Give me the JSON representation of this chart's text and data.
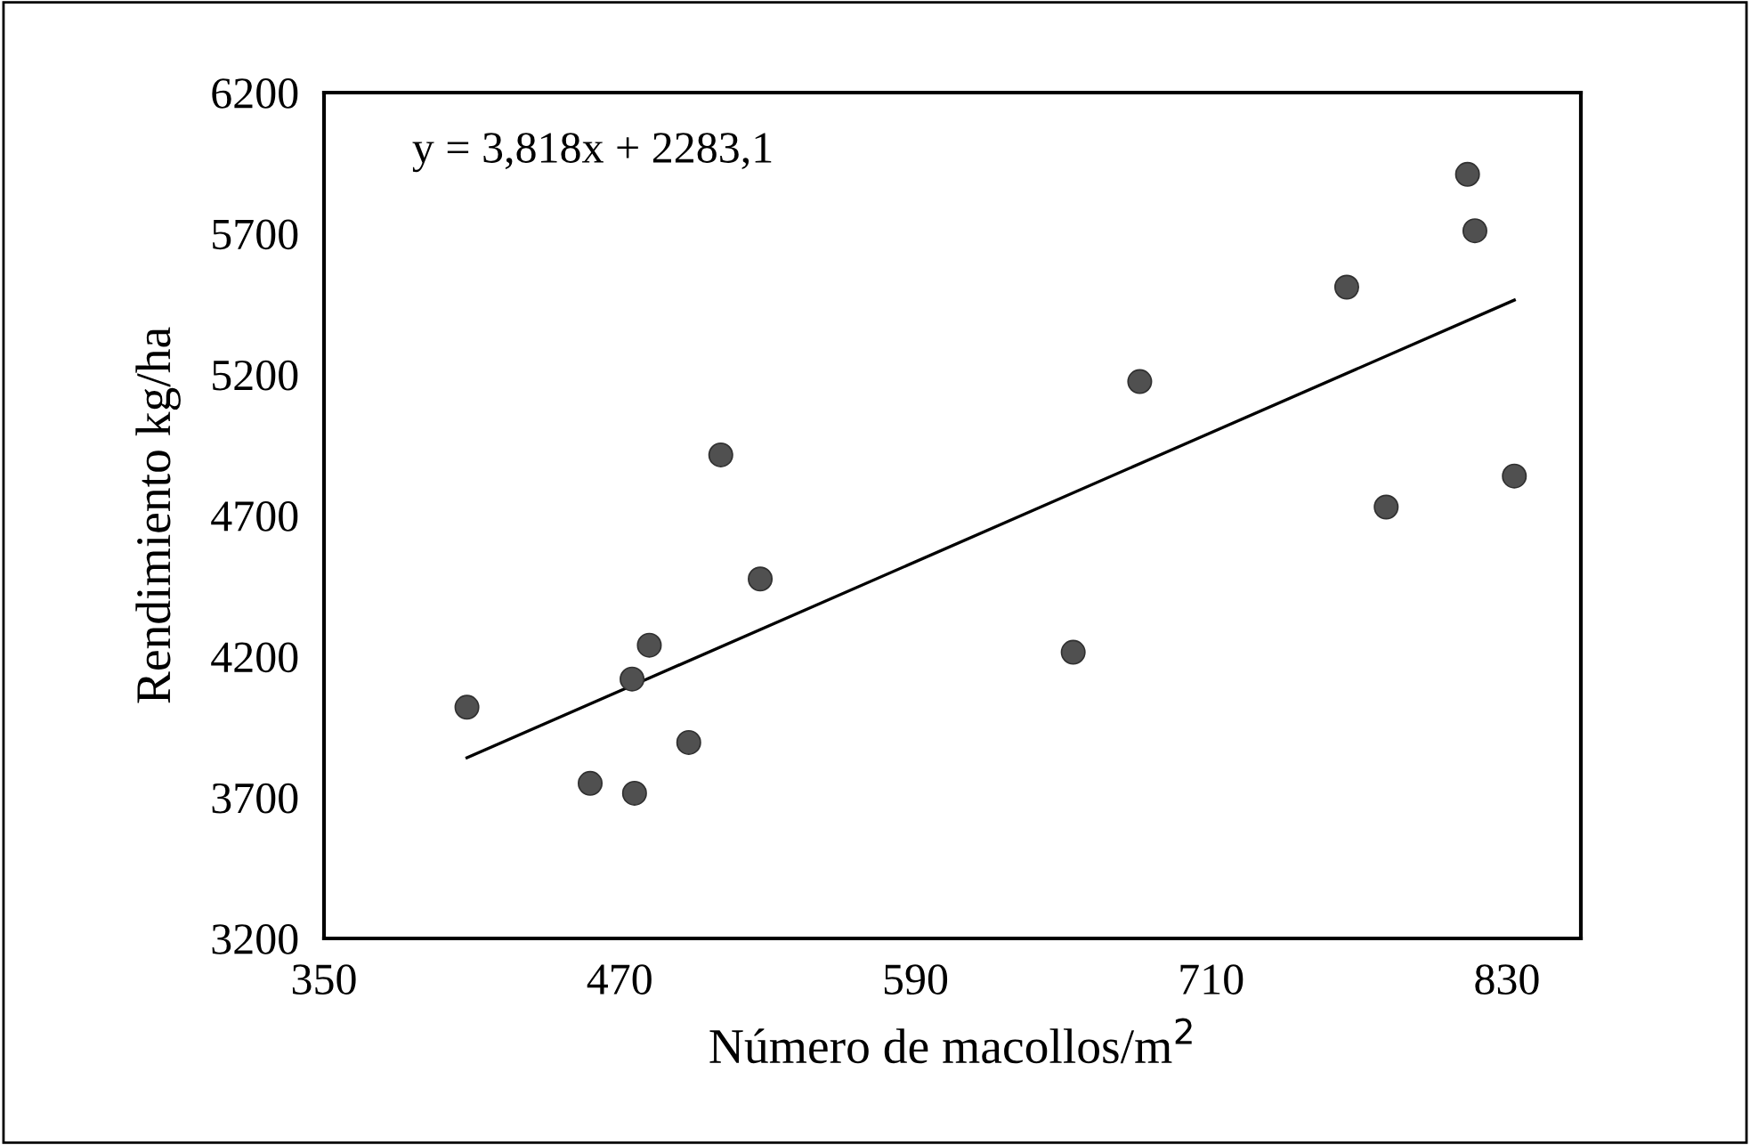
{
  "chart_data": {
    "type": "scatter",
    "xlabel": "Número de macollos/m$^{2}$",
    "ylabel": "Rendimiento kg/ha",
    "xlim": [
      350,
      860
    ],
    "xticks": [
      350,
      470,
      590,
      710,
      830
    ],
    "ylim": [
      3200,
      6200
    ],
    "yticks": [
      3200,
      3700,
      4200,
      4700,
      5200,
      5700,
      6200
    ],
    "grid": false,
    "legend": false,
    "series": [
      {
        "color": "#505050",
        "marker": "circle",
        "x": [
          408,
          458,
          476,
          475,
          482,
          498,
          511,
          527,
          654,
          681,
          765,
          781,
          814,
          817,
          833
        ],
        "values": [
          4020,
          3750,
          3715,
          4120,
          4240,
          3895,
          4915,
          4475,
          4215,
          5175,
          5510,
          4730,
          5910,
          5710,
          4840
        ]
      },
      {
        "type": "line",
        "color": "#000000",
        "x": [
          408,
          833
        ],
        "values": [
          3841,
          5464
        ]
      }
    ],
    "annotations": [
      "y = 3,818x + 2283,1"
    ]
  }
}
